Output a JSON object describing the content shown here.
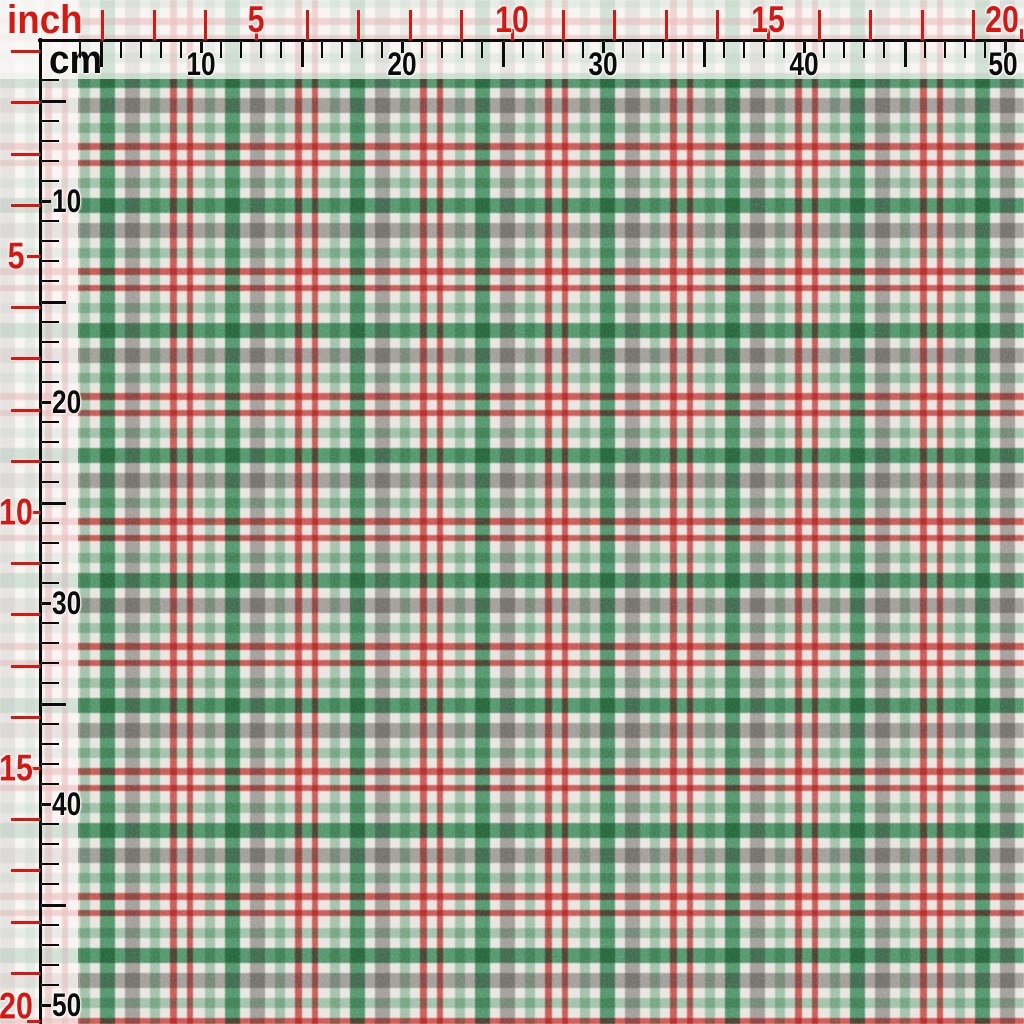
{
  "image": {
    "description": "Photo of red, green, gray and white tartan plaid fabric with an inch ruler and a centimetre ruler along the top and left edges"
  },
  "rulers": {
    "inch": {
      "label": "inch",
      "numbers": [
        "5",
        "10",
        "15",
        "20"
      ],
      "min_tick": 1,
      "max_tick": 20,
      "color": "#da1610"
    },
    "cm": {
      "label": "cm",
      "numbers": [
        "10",
        "20",
        "30",
        "40",
        "50"
      ],
      "min_tick": 4,
      "max_tick": 50,
      "color": "#0b0b0b"
    }
  },
  "fabric": {
    "pattern": "plaid",
    "colors": {
      "ground": "#f2f0ed",
      "red": "#cf4742",
      "green": "#3f8f5e",
      "light_green": "#9cc4a9",
      "gray": "#9c9995"
    }
  }
}
